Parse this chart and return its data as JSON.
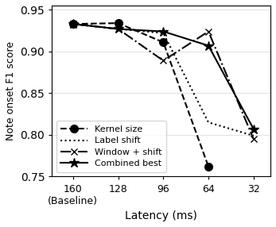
{
  "x_values": [
    160,
    128,
    96,
    64,
    32
  ],
  "x_labels": [
    "160\n(Baseline)",
    "128",
    "96",
    "64",
    "32"
  ],
  "series": {
    "Kernel size": {
      "y": [
        0.933,
        0.934,
        0.911,
        0.762,
        null
      ],
      "linestyle": "--",
      "marker": "o",
      "markersize": 7,
      "markerfacecolor": "black",
      "color": "black",
      "linewidth": 1.5
    },
    "Label shift": {
      "y": [
        0.933,
        0.927,
        0.922,
        0.815,
        0.799
      ],
      "linestyle": ":",
      "marker": null,
      "markersize": 0,
      "markerfacecolor": "black",
      "color": "black",
      "linewidth": 1.5
    },
    "Window + shift": {
      "y": [
        0.933,
        0.927,
        0.889,
        0.924,
        0.795
      ],
      "linestyle": "-.",
      "marker": "x",
      "markersize": 6,
      "markerfacecolor": "black",
      "color": "black",
      "linewidth": 1.5
    },
    "Combined best": {
      "y": [
        0.933,
        0.927,
        0.924,
        0.907,
        0.807
      ],
      "linestyle": "-",
      "marker": "*",
      "markersize": 9,
      "markerfacecolor": "black",
      "color": "black",
      "linewidth": 1.5
    }
  },
  "xlabel": "Latency (ms)",
  "ylabel": "Note onset F1 score",
  "ylim": [
    0.75,
    0.955
  ],
  "yticks": [
    0.75,
    0.8,
    0.85,
    0.9,
    0.95
  ],
  "legend_loc": "lower left",
  "figsize": [
    3.47,
    2.86
  ],
  "dpi": 100
}
